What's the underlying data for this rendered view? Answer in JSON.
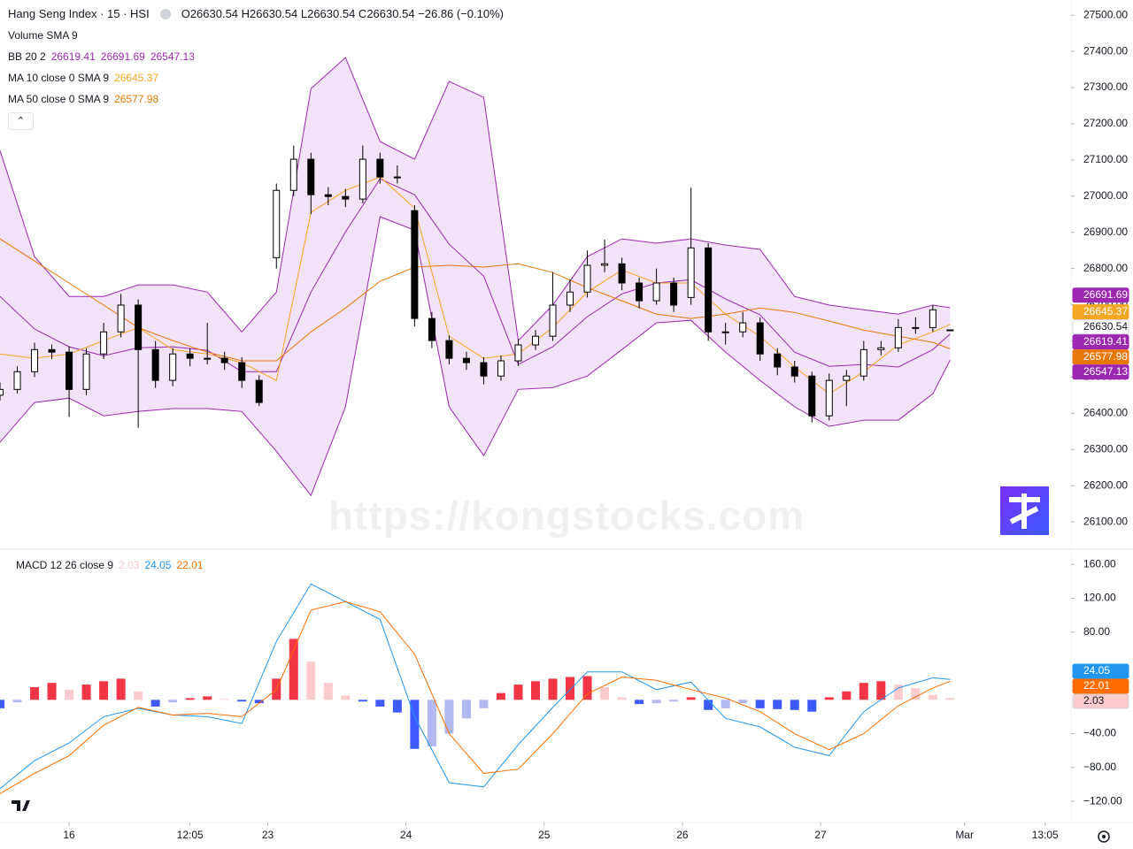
{
  "chart_data": [
    {
      "type": "candlestick",
      "title": "Hang Seng Index · 15 · HSI",
      "ohlc_text": "O26630.54 H26630.54 L26630.54 C26630.54 −26.86 (−0.10%)",
      "watermark": "https://kongstocks.com",
      "x": [
        0,
        3,
        6,
        9,
        12,
        15,
        18,
        21,
        24,
        27,
        30,
        33,
        36,
        39,
        42,
        45,
        48,
        51,
        54,
        57,
        60,
        63,
        66,
        69,
        72,
        75,
        78,
        81,
        84,
        87,
        90,
        93,
        96,
        99,
        102,
        105,
        108,
        111,
        114,
        117,
        120,
        123,
        126,
        129,
        132,
        135,
        138,
        141,
        144,
        147,
        150,
        153,
        156,
        159,
        162,
        165
      ],
      "open": [
        26450,
        26466,
        26515,
        26576,
        26569,
        26466,
        26564,
        26625,
        26699,
        26576,
        26491,
        26564,
        26552,
        26552,
        26540,
        26491,
        26830,
        27016,
        27102,
        27004,
        26999,
        26992,
        27102,
        27053,
        26960,
        26662,
        26601,
        26552,
        26540,
        26503,
        26545,
        26589,
        26613,
        26699,
        26735,
        26809,
        26813,
        26760,
        26711,
        26760,
        26720,
        26857,
        26625,
        26625,
        26650,
        26564,
        26528,
        26503,
        26393,
        26491,
        26503,
        26576,
        26581,
        26637,
        26637,
        26630.54
      ],
      "high": [
        26485,
        26530,
        26595,
        26590,
        26585,
        26580,
        26650,
        26730,
        26715,
        26600,
        26580,
        26580,
        26650,
        26570,
        26555,
        26505,
        27035,
        27140,
        27120,
        27025,
        27020,
        27140,
        27120,
        27085,
        26975,
        26680,
        26615,
        26570,
        26555,
        26560,
        26605,
        26630,
        26790,
        26770,
        26850,
        26880,
        26830,
        26775,
        26800,
        26775,
        27023,
        26870,
        26650,
        26680,
        26665,
        26580,
        26545,
        26515,
        26510,
        26520,
        26600,
        26600,
        26660,
        26665,
        26700,
        26630.54
      ],
      "low": [
        26435,
        26455,
        26500,
        26550,
        26390,
        26450,
        26550,
        26610,
        26360,
        26470,
        26475,
        26530,
        26535,
        26520,
        26470,
        26420,
        26800,
        27000,
        26950,
        26975,
        26970,
        26980,
        27035,
        27035,
        26640,
        26580,
        26535,
        26520,
        26480,
        26490,
        26530,
        26575,
        26600,
        26680,
        26720,
        26790,
        26740,
        26690,
        26700,
        26680,
        26700,
        26600,
        26590,
        26610,
        26545,
        26505,
        26485,
        26375,
        26380,
        26420,
        26490,
        26560,
        26570,
        26620,
        26625,
        26630.54
      ],
      "close": [
        26466,
        26515,
        26576,
        26569,
        26466,
        26564,
        26625,
        26699,
        26576,
        26491,
        26564,
        26552,
        26552,
        26540,
        26491,
        26430,
        27016,
        27102,
        27004,
        26999,
        26992,
        27102,
        27053,
        27053,
        26662,
        26601,
        26552,
        26540,
        26503,
        26545,
        26589,
        26613,
        26699,
        26735,
        26809,
        26813,
        26760,
        26711,
        26760,
        26699,
        26857,
        26625,
        26625,
        26650,
        26564,
        26528,
        26503,
        26393,
        26491,
        26503,
        26576,
        26581,
        26637,
        26637,
        26686,
        26630.54
      ],
      "up_color": "#ffffff",
      "down_color": "#000000",
      "wick_color": "#000000",
      "price_badge_color": "#ffffff",
      "line_x": [
        0,
        6,
        12,
        18,
        24,
        30,
        36,
        42,
        48,
        54,
        60,
        66,
        72,
        78,
        84,
        90,
        96,
        102,
        108,
        114,
        120,
        126,
        132,
        138,
        144,
        150,
        156,
        162,
        165
      ],
      "indicators": [
        {
          "name": "Volume SMA 9"
        },
        {
          "name": "BB 20 2",
          "color": "#9c27b0",
          "fill": "#f3e3f8",
          "lines": [
            [
              26723,
              26633,
              26584,
              26559,
              26581,
              26584,
              26574,
              26515,
              26515,
              26735,
              26901,
              27048,
              27004,
              26867,
              26779,
              26535,
              26584,
              26667,
              26730,
              26760,
              26769,
              26716,
              26672,
              26569,
              26530,
              26535,
              26528,
              26576,
              26619.41
            ],
            [
              27126,
              26833,
              26723,
              26723,
              26755,
              26755,
              26735,
              26625,
              26735,
              27297,
              27383,
              27151,
              27102,
              27317,
              27273,
              26601,
              26699,
              26833,
              26882,
              26870,
              26882,
              26865,
              26853,
              26723,
              26699,
              26686,
              26674,
              26699,
              26691.69
            ],
            [
              26320,
              26430,
              26442,
              26393,
              26405,
              26413,
              26413,
              26405,
              26295,
              26173,
              26418,
              26943,
              26906,
              26418,
              26283,
              26466,
              26471,
              26503,
              26576,
              26650,
              26657,
              26569,
              26491,
              26418,
              26364,
              26381,
              26381,
              26454,
              26547.13
            ]
          ]
        },
        {
          "name": "MA 10 close 0 SMA 9",
          "color": "#f5a623",
          "lines": [
            [
              26564,
              26552,
              26564,
              26601,
              26637,
              26576,
              26564,
              26540,
              26491,
              26955,
              27016,
              27053,
              26967,
              26613,
              26552,
              26564,
              26637,
              26735,
              26796,
              26760,
              26760,
              26674,
              26613,
              26528,
              26454,
              26515,
              26589,
              26625,
              26645.37
            ]
          ]
        },
        {
          "name": "MA 50 close 0 SMA 9",
          "color": "#e8770a",
          "lines": [
            [
              26882,
              26821,
              26760,
              26699,
              26637,
              26601,
              26569,
              26545,
              26545,
              26625,
              26691,
              26765,
              26804,
              26809,
              26804,
              26813,
              26789,
              26747,
              26711,
              26674,
              26662,
              26674,
              26691,
              26679,
              26655,
              26630,
              26613,
              26596,
              26577.98
            ]
          ]
        }
      ],
      "xlim": [
        0,
        186
      ],
      "ylim": [
        26027,
        27542
      ],
      "yticks": [
        {
          "value": 26100,
          "label": "26100.00"
        },
        {
          "value": 26200,
          "label": "26200.00"
        },
        {
          "value": 26300,
          "label": "26300.00"
        },
        {
          "value": 26400,
          "label": "26400.00"
        },
        {
          "value": 26500,
          "label": "26500.00"
        },
        {
          "value": 26600,
          "label": "26600.00"
        },
        {
          "value": 26700,
          "label": "26700.00"
        },
        {
          "value": 26800,
          "label": "26800.00"
        },
        {
          "value": 26900,
          "label": "26900.00"
        },
        {
          "value": 27000,
          "label": "27000.00"
        },
        {
          "value": 27100,
          "label": "27100.00"
        },
        {
          "value": 27200,
          "label": "27200.00"
        },
        {
          "value": 27300,
          "label": "27300.00"
        },
        {
          "value": 27400,
          "label": "27400.00"
        },
        {
          "value": 27500,
          "label": "27500.00"
        }
      ],
      "grid": false
    },
    {
      "type": "macd",
      "name": "MACD 12 26 close 9",
      "x": [
        0,
        3,
        6,
        9,
        12,
        15,
        18,
        21,
        24,
        27,
        30,
        33,
        36,
        39,
        42,
        45,
        48,
        51,
        54,
        57,
        60,
        63,
        66,
        69,
        72,
        75,
        78,
        81,
        84,
        87,
        90,
        93,
        96,
        99,
        102,
        105,
        108,
        111,
        114,
        117,
        120,
        123,
        126,
        129,
        132,
        135,
        138,
        141,
        144,
        147,
        150,
        153,
        156,
        159,
        162,
        165
      ],
      "histogram": [
        -10,
        -3,
        15,
        20,
        12,
        18,
        22,
        25,
        10,
        -8,
        -3,
        2,
        4,
        1,
        -2,
        -4,
        25,
        72,
        45,
        20,
        5,
        -2,
        -8,
        -15,
        -58,
        -55,
        -40,
        -22,
        -10,
        8,
        18,
        22,
        25,
        27,
        28,
        15,
        3,
        -5,
        -4,
        -2,
        3,
        -12,
        -10,
        -4,
        -10,
        -11,
        -12,
        -14,
        3,
        10,
        20,
        22,
        18,
        14,
        6,
        2.03
      ],
      "histogram_colors": [
        "#f23645",
        "#fccbcd",
        "#3d5afe",
        "#b2b9f2"
      ],
      "line_x": [
        0,
        6,
        12,
        18,
        24,
        30,
        36,
        42,
        48,
        54,
        60,
        66,
        72,
        78,
        84,
        90,
        96,
        102,
        108,
        114,
        120,
        126,
        132,
        138,
        144,
        150,
        156,
        162,
        165
      ],
      "macd": {
        "color": "#2196f3",
        "values": [
          -105,
          -72,
          -51,
          -20,
          -10,
          -18,
          -20,
          -28,
          69,
          137,
          116,
          95,
          -20,
          -98,
          -103,
          -53,
          -9,
          33,
          33,
          12,
          21,
          -22,
          -32,
          -56,
          -66,
          -14,
          14,
          26,
          24.05
        ]
      },
      "signal": {
        "color": "#ff6d00",
        "values": [
          -111,
          -87,
          -66,
          -30,
          -9,
          -18,
          -16,
          -20,
          12,
          106,
          116,
          104,
          54,
          -40,
          -87,
          -82,
          -40,
          7,
          27,
          23,
          12,
          2,
          -14,
          -40,
          -59,
          -40,
          -7,
          14,
          22.01
        ]
      },
      "xlim": [
        0,
        186
      ],
      "xticks": [
        {
          "value": 12,
          "label": "16"
        },
        {
          "value": 33,
          "label": "12:05"
        },
        {
          "value": 46.5,
          "label": "23"
        },
        {
          "value": 70.5,
          "label": "24"
        },
        {
          "value": 94.5,
          "label": "25"
        },
        {
          "value": 118.5,
          "label": "26"
        },
        {
          "value": 142.5,
          "label": "27"
        },
        {
          "value": 167.5,
          "label": "Mar"
        },
        {
          "value": 181.5,
          "label": "13:05"
        }
      ],
      "ylim": [
        -145,
        177
      ],
      "yticks": [
        {
          "value": 160,
          "label": "160.00"
        },
        {
          "value": 120,
          "label": "120.00"
        },
        {
          "value": 80,
          "label": "80.00"
        },
        {
          "value": -40,
          "label": "−40.00"
        },
        {
          "value": -80,
          "label": "−80.00"
        },
        {
          "value": -120,
          "label": "−120.00"
        }
      ],
      "grid": false
    }
  ]
}
